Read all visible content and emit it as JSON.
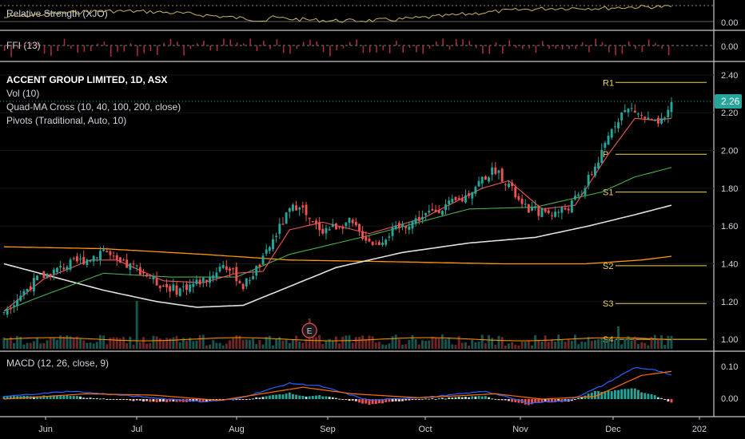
{
  "panes": {
    "rs_label": "Relative Strength (XJO)",
    "rs_axis": [
      "0.00"
    ],
    "ffi_label": "FFI (13)",
    "ffi_axis": [
      "0.00"
    ],
    "main_title": "ACCENT GROUP LIMITED, 1D, ASX",
    "main_vol": "Vol (10)",
    "main_ma": "Quad-MA Cross (10, 40, 100, 200, close)",
    "main_pivots": "Pivots (Traditional, Auto, 10)",
    "earnings_marker": "E",
    "macd_label": "MACD (12, 26, close, 9)",
    "macd_axis": [
      "0.10",
      "0.00"
    ]
  },
  "price_axis": [
    "2.40",
    "2.20",
    "2.00",
    "1.80",
    "1.60",
    "1.40",
    "1.20",
    "1.00"
  ],
  "last_price": "2.26",
  "x_axis": [
    "Jun",
    "Jul",
    "Aug",
    "Sep",
    "Oct",
    "Nov",
    "Dec",
    "202"
  ],
  "pivots": {
    "levels": [
      {
        "label": "R1",
        "value": 2.36
      },
      {
        "label": "P",
        "value": 1.98
      },
      {
        "label": "S1",
        "value": 1.78
      },
      {
        "label": "S2",
        "value": 1.39
      },
      {
        "label": "S3",
        "value": 1.19
      },
      {
        "label": "S4",
        "value": 1.0
      }
    ]
  },
  "colors": {
    "up": "#26a69a",
    "down": "#ef5350",
    "ma10": "#f2545b",
    "ma40": "#4caf50",
    "ma100": "#e0e0e0",
    "ma200": "#ff9800",
    "pivot": "#f0d060",
    "rs": "#c8b46a",
    "macd": "#2962ff",
    "signal": "#ff6d00"
  },
  "chart_data": {
    "type": "candlestick",
    "title": "ACCENT GROUP LIMITED, 1D, ASX",
    "ylim": [
      0.95,
      2.45
    ],
    "price_anchors": [
      [
        0,
        1.15
      ],
      [
        10,
        1.32
      ],
      [
        20,
        1.4
      ],
      [
        26,
        1.43
      ],
      [
        30,
        1.48
      ],
      [
        34,
        1.4
      ],
      [
        40,
        1.38
      ],
      [
        46,
        1.3
      ],
      [
        52,
        1.26
      ],
      [
        58,
        1.3
      ],
      [
        62,
        1.33
      ],
      [
        66,
        1.4
      ],
      [
        70,
        1.33
      ],
      [
        72,
        1.28
      ],
      [
        78,
        1.42
      ],
      [
        82,
        1.56
      ],
      [
        86,
        1.68
      ],
      [
        89,
        1.72
      ],
      [
        92,
        1.62
      ],
      [
        96,
        1.58
      ],
      [
        100,
        1.6
      ],
      [
        104,
        1.62
      ],
      [
        108,
        1.55
      ],
      [
        112,
        1.5
      ],
      [
        116,
        1.56
      ],
      [
        120,
        1.6
      ],
      [
        126,
        1.65
      ],
      [
        132,
        1.7
      ],
      [
        138,
        1.74
      ],
      [
        144,
        1.85
      ],
      [
        148,
        1.9
      ],
      [
        152,
        1.82
      ],
      [
        156,
        1.7
      ],
      [
        160,
        1.68
      ],
      [
        166,
        1.67
      ],
      [
        170,
        1.7
      ],
      [
        174,
        1.78
      ],
      [
        177,
        1.88
      ],
      [
        180,
        1.98
      ],
      [
        183,
        2.12
      ],
      [
        186,
        2.2
      ],
      [
        189,
        2.22
      ],
      [
        192,
        2.18
      ],
      [
        196,
        2.14
      ],
      [
        199,
        2.15
      ],
      [
        201,
        2.26
      ]
    ],
    "ma_anchors": {
      "ma10": [
        [
          0,
          1.15
        ],
        [
          12,
          1.32
        ],
        [
          26,
          1.42
        ],
        [
          34,
          1.42
        ],
        [
          48,
          1.31
        ],
        [
          60,
          1.3
        ],
        [
          70,
          1.35
        ],
        [
          78,
          1.36
        ],
        [
          86,
          1.58
        ],
        [
          96,
          1.62
        ],
        [
          110,
          1.56
        ],
        [
          126,
          1.64
        ],
        [
          144,
          1.8
        ],
        [
          152,
          1.84
        ],
        [
          162,
          1.69
        ],
        [
          172,
          1.71
        ],
        [
          182,
          1.98
        ],
        [
          190,
          2.17
        ],
        [
          196,
          2.16
        ],
        [
          201,
          2.17
        ]
      ],
      "ma40": [
        [
          0,
          1.15
        ],
        [
          10,
          1.22
        ],
        [
          30,
          1.35
        ],
        [
          50,
          1.33
        ],
        [
          70,
          1.33
        ],
        [
          86,
          1.45
        ],
        [
          110,
          1.55
        ],
        [
          140,
          1.69
        ],
        [
          160,
          1.7
        ],
        [
          180,
          1.78
        ],
        [
          190,
          1.86
        ],
        [
          201,
          1.91
        ]
      ],
      "ma100": [
        [
          0,
          1.4
        ],
        [
          15,
          1.33
        ],
        [
          30,
          1.26
        ],
        [
          46,
          1.2
        ],
        [
          58,
          1.17
        ],
        [
          72,
          1.18
        ],
        [
          86,
          1.28
        ],
        [
          100,
          1.38
        ],
        [
          120,
          1.46
        ],
        [
          140,
          1.51
        ],
        [
          160,
          1.54
        ],
        [
          176,
          1.6
        ],
        [
          190,
          1.66
        ],
        [
          201,
          1.71
        ]
      ],
      "ma200": [
        [
          0,
          1.49
        ],
        [
          30,
          1.48
        ],
        [
          60,
          1.45
        ],
        [
          86,
          1.42
        ],
        [
          120,
          1.41
        ],
        [
          150,
          1.4
        ],
        [
          175,
          1.4
        ],
        [
          192,
          1.42
        ],
        [
          201,
          1.44
        ]
      ]
    },
    "earnings_bar_index": 92
  }
}
